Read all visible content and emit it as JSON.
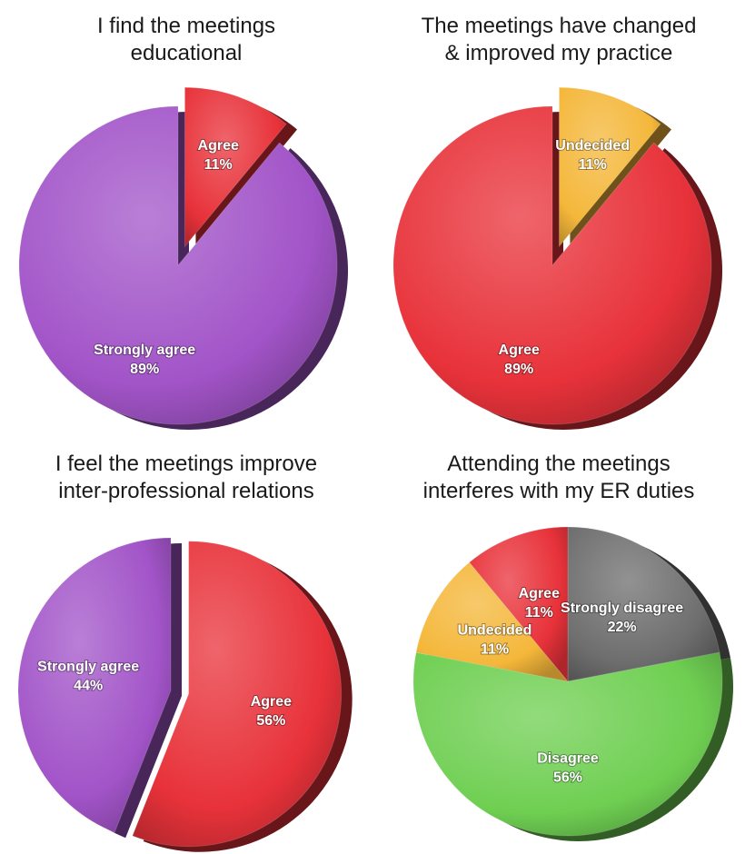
{
  "chart_data": [
    {
      "type": "pie",
      "title": [
        "I find the meetings",
        "educational"
      ],
      "slices": [
        {
          "label": "Agree",
          "value": 11,
          "value_label": "11%",
          "color": "#e8323a",
          "exploded": true
        },
        {
          "label": "Strongly agree",
          "value": 89,
          "value_label": "89%",
          "color": "#a254c8",
          "exploded": false
        }
      ]
    },
    {
      "type": "pie",
      "title": [
        "The meetings have changed",
        "& improved my practice"
      ],
      "slices": [
        {
          "label": "Undecided",
          "value": 11,
          "value_label": "11%",
          "color": "#f4b73a",
          "exploded": true
        },
        {
          "label": "Agree",
          "value": 89,
          "value_label": "89%",
          "color": "#e8323a",
          "exploded": false
        }
      ]
    },
    {
      "type": "pie",
      "title": [
        "I feel the meetings improve",
        "inter-professional relations"
      ],
      "slices": [
        {
          "label": "Agree",
          "value": 56,
          "value_label": "56%",
          "color": "#e8323a",
          "exploded": true
        },
        {
          "label": "Strongly agree",
          "value": 44,
          "value_label": "44%",
          "color": "#a254c8",
          "exploded": false
        }
      ]
    },
    {
      "type": "pie",
      "title": [
        "Attending the meetings",
        "interferes with my ER duties"
      ],
      "slices": [
        {
          "label": "Strongly disagree",
          "value": 22,
          "value_label": "22%",
          "color": "#6e6e6e",
          "exploded": false
        },
        {
          "label": "Disagree",
          "value": 56,
          "value_label": "56%",
          "color": "#6fcf52",
          "exploded": false
        },
        {
          "label": "Undecided",
          "value": 11,
          "value_label": "11%",
          "color": "#f4b73a",
          "exploded": false
        },
        {
          "label": "Agree",
          "value": 11,
          "value_label": "11%",
          "color": "#e8323a",
          "exploded": false
        }
      ]
    }
  ]
}
